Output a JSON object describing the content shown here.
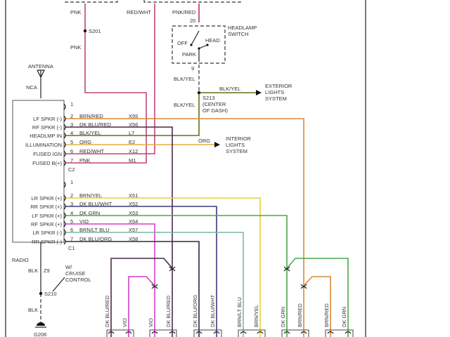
{
  "wire_colors": {
    "pnk": "#c0457a",
    "redwht": "#c0457a",
    "pnkred": "#c0305a",
    "blkyel": "#6b6b1a",
    "brnred": "#d98a3a",
    "dkblured": "#4a2a4a",
    "org": "#e0b040",
    "brnyel": "#e8d030",
    "dkbluwht": "#3a3a78",
    "dkgrn": "#4aa84a",
    "vio": "#d040c8",
    "brnltblu": "#7ab8a0",
    "dkbluorg": "#28284a"
  },
  "top": {
    "pnk": "PNK",
    "s201": "S201",
    "pnk2": "PNK",
    "redwht": "RED/WHT",
    "pnkred": "PNK/RED",
    "pin20": "20",
    "pin9": "9"
  },
  "headlamp_switch": {
    "title1": "HEADLAMP",
    "title2": "SWITCH",
    "off": "OFF",
    "head": "HEAD",
    "park": "PARK"
  },
  "s213": {
    "blkyel_up": "BLK/YEL",
    "blkyel_down": "BLK/YEL",
    "blkyel_right": "BLK/YEL",
    "name": "S213",
    "loc1": "(CENTER",
    "loc2": "OF DASH)"
  },
  "exterior": [
    "EXTERIOR",
    "LIGHTS",
    "SYSTEM"
  ],
  "interior": {
    "org": "ORG",
    "lines": [
      "INTERIOR",
      "LIGHTS",
      "SYSTEM"
    ]
  },
  "antenna": {
    "label": "ANTENNA",
    "nca": "NCA"
  },
  "radio": {
    "label": "RADIO",
    "c2": {
      "name": "C2",
      "pins": [
        {
          "n": "1",
          "fn": "",
          "color": "",
          "circuit": ""
        },
        {
          "n": "2",
          "fn": "LF SPKR (-)",
          "color": "BRN/RED",
          "circuit": "X55"
        },
        {
          "n": "3",
          "fn": "RF SPKR (-)",
          "color": "DK BLU/RED",
          "circuit": "X56"
        },
        {
          "n": "4",
          "fn": "HEADLMP IN",
          "color": "BLK/YEL",
          "circuit": "L7"
        },
        {
          "n": "5",
          "fn": "ILLUMINATION",
          "color": "ORG",
          "circuit": "E2"
        },
        {
          "n": "6",
          "fn": "FUSED IGN",
          "color": "RED/WHT",
          "circuit": "X12"
        },
        {
          "n": "7",
          "fn": "FUSED B(+)",
          "color": "PNK",
          "circuit": "M1"
        }
      ]
    },
    "c1": {
      "name": "C1",
      "pins": [
        {
          "n": "1",
          "fn": "",
          "color": "",
          "circuit": ""
        },
        {
          "n": "2",
          "fn": "LR SPKR (+)",
          "color": "BRN/YEL",
          "circuit": "X51"
        },
        {
          "n": "3",
          "fn": "RR SPKR (+)",
          "color": "DK BLU/WHT",
          "circuit": "X52"
        },
        {
          "n": "4",
          "fn": "LF SPKR (+)",
          "color": "DK GRN",
          "circuit": "X53"
        },
        {
          "n": "5",
          "fn": "RF SPKR (+)",
          "color": "VIO",
          "circuit": "X54"
        },
        {
          "n": "6",
          "fn": "LR SPKR (-)",
          "color": "BRN/LT BLU",
          "circuit": "X57"
        },
        {
          "n": "7",
          "fn": "RR SPKR (-)",
          "color": "DK BLU/ORG",
          "circuit": "X58"
        }
      ]
    }
  },
  "ground": {
    "blk1": "BLK",
    "z9": "Z9",
    "s210": "S210",
    "blk2": "BLK",
    "g206": "G206",
    "note": [
      "W/",
      "CRUISE",
      "CONTROL"
    ]
  },
  "speaker_wires": [
    "DK BLU/RED",
    "VIO",
    "VIO",
    "DK BLU/RED",
    "DK BLU/ORG",
    "DK BLU/WHT",
    "BRN/LT BLU",
    "BRN/YEL",
    "DK GRN",
    "BRN/RED",
    "BRN/RED",
    "DK GRN"
  ]
}
